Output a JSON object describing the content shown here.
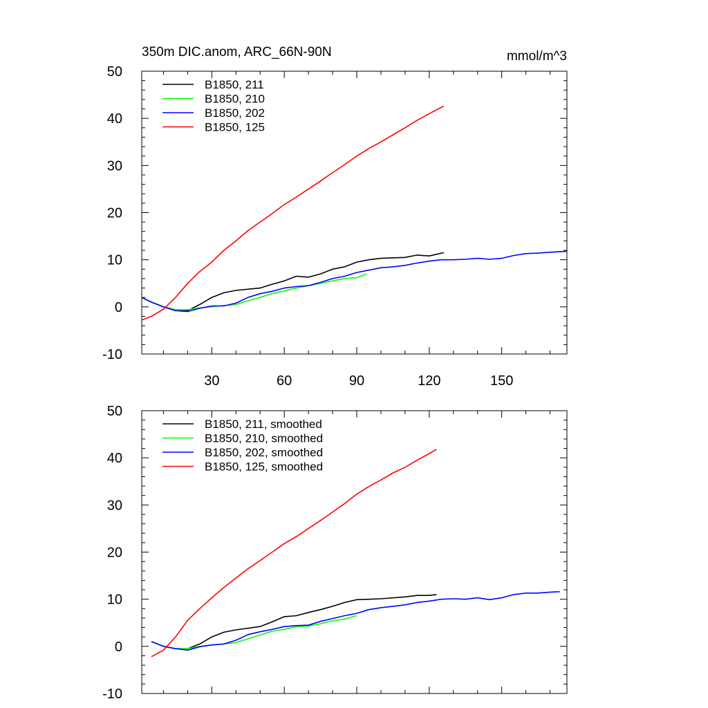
{
  "chart_data": [
    {
      "type": "line",
      "title": "350m DIC.anom, ARC_66N-90N",
      "units": "mmol/m^3",
      "xlim": [
        1,
        177
      ],
      "ylim": [
        -10,
        50
      ],
      "x_ticks": [
        30,
        60,
        90,
        120,
        150
      ],
      "x_tick_labels": [
        "30",
        "60",
        "90",
        "120",
        "150"
      ],
      "y_ticks": [
        -10,
        0,
        10,
        20,
        30,
        40,
        50
      ],
      "y_tick_labels": [
        "-10",
        "0",
        "10",
        "20",
        "30",
        "40",
        "50"
      ],
      "legend_position": "top-left",
      "series": [
        {
          "name": "B1850, 211",
          "color": "#000000",
          "points": [
            [
              1,
              2
            ],
            [
              5,
              1
            ],
            [
              10,
              0
            ],
            [
              15,
              -0.7
            ],
            [
              20,
              -0.8
            ],
            [
              25,
              0.5
            ],
            [
              30,
              2
            ],
            [
              35,
              3
            ],
            [
              40,
              3.5
            ],
            [
              50,
              4
            ],
            [
              55,
              4.8
            ],
            [
              60,
              5.5
            ],
            [
              65,
              6.5
            ],
            [
              70,
              6.3
            ],
            [
              75,
              7
            ],
            [
              80,
              8
            ],
            [
              85,
              8.5
            ],
            [
              90,
              9.5
            ],
            [
              95,
              10
            ],
            [
              100,
              10.3
            ],
            [
              110,
              10.5
            ],
            [
              115,
              11
            ],
            [
              120,
              10.8
            ],
            [
              126,
              11.5
            ]
          ]
        },
        {
          "name": "B1850, 210",
          "color": "#00ff00",
          "points": [
            [
              1,
              2
            ],
            [
              5,
              1
            ],
            [
              10,
              0
            ],
            [
              15,
              -0.6
            ],
            [
              20,
              -0.6
            ],
            [
              25,
              -0.2
            ],
            [
              30,
              0
            ],
            [
              35,
              0.3
            ],
            [
              40,
              0.5
            ],
            [
              45,
              1.3
            ],
            [
              50,
              2
            ],
            [
              55,
              2.8
            ],
            [
              60,
              3.4
            ],
            [
              65,
              4
            ],
            [
              70,
              4.5
            ],
            [
              75,
              5
            ],
            [
              80,
              5.5
            ],
            [
              85,
              6
            ],
            [
              90,
              6.2
            ],
            [
              94,
              7
            ]
          ]
        },
        {
          "name": "B1850, 202",
          "color": "#0000ff",
          "points": [
            [
              1,
              2
            ],
            [
              5,
              1
            ],
            [
              10,
              0
            ],
            [
              15,
              -0.8
            ],
            [
              20,
              -1
            ],
            [
              25,
              -0.3
            ],
            [
              30,
              0.2
            ],
            [
              35,
              0.2
            ],
            [
              40,
              0.8
            ],
            [
              45,
              2
            ],
            [
              50,
              2.8
            ],
            [
              55,
              3.3
            ],
            [
              60,
              4
            ],
            [
              65,
              4.3
            ],
            [
              70,
              4.5
            ],
            [
              75,
              5.2
            ],
            [
              80,
              6
            ],
            [
              85,
              6.5
            ],
            [
              90,
              7.3
            ],
            [
              95,
              7.8
            ],
            [
              100,
              8.3
            ],
            [
              105,
              8.5
            ],
            [
              110,
              8.8
            ],
            [
              115,
              9.3
            ],
            [
              120,
              9.7
            ],
            [
              125,
              10
            ],
            [
              130,
              10
            ],
            [
              135,
              10.1
            ],
            [
              140,
              10.3
            ],
            [
              145,
              10.1
            ],
            [
              150,
              10.3
            ],
            [
              155,
              10.9
            ],
            [
              160,
              11.3
            ],
            [
              165,
              11.4
            ],
            [
              170,
              11.6
            ],
            [
              177,
              11.8
            ]
          ]
        },
        {
          "name": "B1850, 125",
          "color": "#ff0000",
          "points": [
            [
              1,
              -2.8
            ],
            [
              5,
              -2
            ],
            [
              10,
              -0.5
            ],
            [
              15,
              2
            ],
            [
              20,
              5
            ],
            [
              25,
              7.5
            ],
            [
              30,
              9.5
            ],
            [
              35,
              12
            ],
            [
              40,
              14
            ],
            [
              45,
              16.2
            ],
            [
              50,
              18
            ],
            [
              55,
              19.8
            ],
            [
              60,
              21.7
            ],
            [
              65,
              23.3
            ],
            [
              70,
              25
            ],
            [
              75,
              26.7
            ],
            [
              80,
              28.5
            ],
            [
              85,
              30.2
            ],
            [
              90,
              32
            ],
            [
              95,
              33.6
            ],
            [
              100,
              35
            ],
            [
              105,
              36.5
            ],
            [
              110,
              38
            ],
            [
              115,
              39.6
            ],
            [
              120,
              41
            ],
            [
              126,
              42.6
            ]
          ]
        }
      ]
    },
    {
      "type": "line",
      "title": "",
      "units": "",
      "xlim": [
        1,
        177
      ],
      "ylim": [
        -10,
        50
      ],
      "x_ticks": [
        30,
        60,
        90,
        120,
        150
      ],
      "x_tick_labels": [],
      "y_ticks": [
        -10,
        0,
        10,
        20,
        30,
        40,
        50
      ],
      "y_tick_labels": [
        "-10",
        "0",
        "10",
        "20",
        "30",
        "40",
        "50"
      ],
      "legend_position": "top-left",
      "series": [
        {
          "name": "B1850, 211, smoothed",
          "color": "#000000",
          "points": [
            [
              5,
              1
            ],
            [
              10,
              0
            ],
            [
              15,
              -0.5
            ],
            [
              20,
              -0.5
            ],
            [
              25,
              0.5
            ],
            [
              30,
              2
            ],
            [
              35,
              3
            ],
            [
              40,
              3.5
            ],
            [
              50,
              4.2
            ],
            [
              55,
              5.2
            ],
            [
              60,
              6.3
            ],
            [
              65,
              6.5
            ],
            [
              70,
              7.2
            ],
            [
              75,
              7.8
            ],
            [
              80,
              8.5
            ],
            [
              85,
              9.3
            ],
            [
              90,
              9.9
            ],
            [
              95,
              10
            ],
            [
              100,
              10.1
            ],
            [
              110,
              10.5
            ],
            [
              115,
              10.8
            ],
            [
              120,
              10.8
            ],
            [
              123,
              11
            ]
          ]
        },
        {
          "name": "B1850, 210, smoothed",
          "color": "#00ff00",
          "points": [
            [
              5,
              1
            ],
            [
              10,
              0
            ],
            [
              15,
              -0.5
            ],
            [
              20,
              -0.5
            ],
            [
              25,
              0
            ],
            [
              30,
              0.3
            ],
            [
              35,
              0.5
            ],
            [
              40,
              0.8
            ],
            [
              45,
              1.6
            ],
            [
              50,
              2.4
            ],
            [
              55,
              3.2
            ],
            [
              60,
              3.6
            ],
            [
              65,
              4.2
            ],
            [
              70,
              4.3
            ],
            [
              75,
              4.8
            ],
            [
              80,
              5.4
            ],
            [
              85,
              5.8
            ],
            [
              90,
              6.5
            ]
          ]
        },
        {
          "name": "B1850, 202, smoothed",
          "color": "#0000ff",
          "points": [
            [
              5,
              1
            ],
            [
              10,
              0
            ],
            [
              15,
              -0.5
            ],
            [
              20,
              -0.8
            ],
            [
              25,
              -0.1
            ],
            [
              30,
              0.3
            ],
            [
              35,
              0.5
            ],
            [
              40,
              1.3
            ],
            [
              45,
              2.5
            ],
            [
              50,
              3.1
            ],
            [
              55,
              3.6
            ],
            [
              60,
              4.2
            ],
            [
              65,
              4.4
            ],
            [
              70,
              4.5
            ],
            [
              75,
              5.3
            ],
            [
              80,
              5.9
            ],
            [
              85,
              6.5
            ],
            [
              90,
              7
            ],
            [
              95,
              7.8
            ],
            [
              100,
              8.2
            ],
            [
              105,
              8.5
            ],
            [
              110,
              8.8
            ],
            [
              115,
              9.3
            ],
            [
              120,
              9.6
            ],
            [
              125,
              10
            ],
            [
              130,
              10.1
            ],
            [
              135,
              10
            ],
            [
              140,
              10.3
            ],
            [
              145,
              9.9
            ],
            [
              150,
              10.3
            ],
            [
              155,
              11
            ],
            [
              160,
              11.3
            ],
            [
              165,
              11.3
            ],
            [
              170,
              11.5
            ],
            [
              174,
              11.6
            ]
          ]
        },
        {
          "name": "B1850, 125, smoothed",
          "color": "#ff0000",
          "points": [
            [
              5,
              -2.2
            ],
            [
              10,
              -0.8
            ],
            [
              15,
              2
            ],
            [
              20,
              5.5
            ],
            [
              25,
              8
            ],
            [
              30,
              10.3
            ],
            [
              35,
              12.5
            ],
            [
              40,
              14.5
            ],
            [
              45,
              16.5
            ],
            [
              50,
              18.2
            ],
            [
              55,
              20
            ],
            [
              60,
              21.8
            ],
            [
              65,
              23.3
            ],
            [
              70,
              25
            ],
            [
              75,
              26.7
            ],
            [
              80,
              28.5
            ],
            [
              85,
              30.3
            ],
            [
              90,
              32.3
            ],
            [
              95,
              33.9
            ],
            [
              100,
              35.3
            ],
            [
              105,
              36.8
            ],
            [
              110,
              38
            ],
            [
              115,
              39.5
            ],
            [
              120,
              40.9
            ],
            [
              123,
              41.8
            ]
          ]
        }
      ]
    }
  ]
}
